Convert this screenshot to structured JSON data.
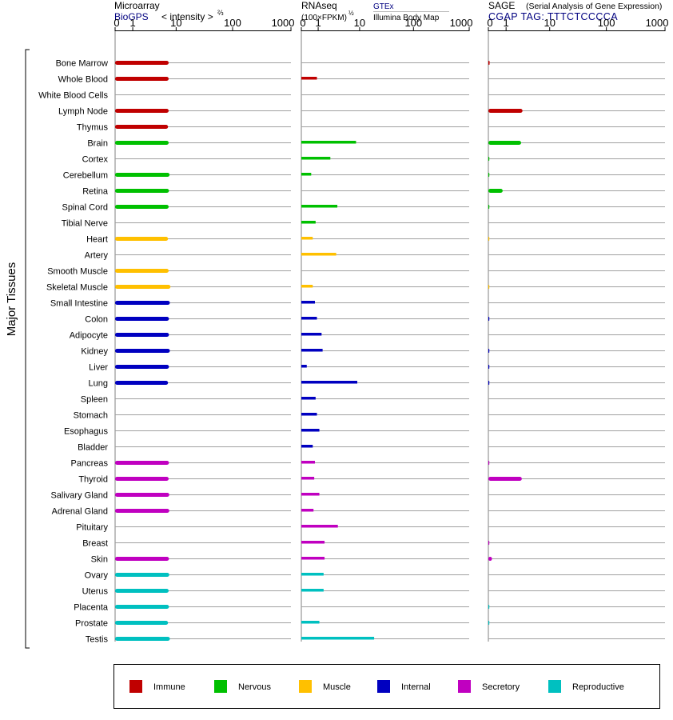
{
  "panels": {
    "microarray": {
      "title": "Microarray",
      "source": "BioGPS",
      "unit_label": "< intensity >",
      "unit_exp": "⅔"
    },
    "rnaseq": {
      "title": "RNAseq",
      "unit_label": "(100×FPKM)",
      "unit_exp": "½",
      "source_top": "GTEx",
      "source_bottom": "Illumina Body Map"
    },
    "sage": {
      "title": "SAGE",
      "subtitle": "(Serial Analysis of Gene Expression)",
      "tag": "CGAP TAG: TTTCTCCCCA"
    }
  },
  "y_axis_label": "Major Tissues",
  "colors": {
    "Immune": "#c00000",
    "Nervous": "#00c000",
    "Muscle": "#ffc000",
    "Internal": "#0000c0",
    "Secretory": "#c000c0",
    "Reproductive": "#00c0c0"
  },
  "legend": [
    {
      "label": "Immune",
      "color": "#c00000"
    },
    {
      "label": "Nervous",
      "color": "#00c000"
    },
    {
      "label": "Muscle",
      "color": "#ffc000"
    },
    {
      "label": "Internal",
      "color": "#0000c0"
    },
    {
      "label": "Secretory",
      "color": "#c000c0"
    },
    {
      "label": "Reproductive",
      "color": "#00c0c0"
    }
  ],
  "chart_data": {
    "type": "bar",
    "orientation": "horizontal",
    "x_scale": "log",
    "xlim": [
      0,
      1000
    ],
    "ticks": [
      "0",
      "1",
      "10",
      "100",
      "1000"
    ],
    "tissues": [
      {
        "name": "Bone Marrow",
        "group": "Immune",
        "microarray": 7.2,
        "rnaseq": null,
        "sage": 0.05
      },
      {
        "name": "Whole Blood",
        "group": "Immune",
        "microarray": 7.2,
        "rnaseq": 0.9,
        "sage": null
      },
      {
        "name": "White Blood Cells",
        "group": "Immune",
        "microarray": null,
        "rnaseq": null,
        "sage": null
      },
      {
        "name": "Lymph Node",
        "group": "Immune",
        "microarray": 7.2,
        "rnaseq": null,
        "sage": 2.8
      },
      {
        "name": "Thymus",
        "group": "Immune",
        "microarray": 7.0,
        "rnaseq": null,
        "sage": null
      },
      {
        "name": "Brain",
        "group": "Nervous",
        "microarray": 7.2,
        "rnaseq": 8.5,
        "sage": 2.6
      },
      {
        "name": "Cortex",
        "group": "Nervous",
        "microarray": null,
        "rnaseq": 2.3,
        "sage": 0.02
      },
      {
        "name": "Cerebellum",
        "group": "Nervous",
        "microarray": 7.5,
        "rnaseq": 0.5,
        "sage": 0.02
      },
      {
        "name": "Retina",
        "group": "Nervous",
        "microarray": 7.3,
        "rnaseq": null,
        "sage": 0.75
      },
      {
        "name": "Spinal Cord",
        "group": "Nervous",
        "microarray": 7.2,
        "rnaseq": 3.4,
        "sage": 0.02
      },
      {
        "name": "Tibial Nerve",
        "group": "Nervous",
        "microarray": null,
        "rnaseq": 0.8,
        "sage": null
      },
      {
        "name": "Heart",
        "group": "Muscle",
        "microarray": 7.0,
        "rnaseq": 0.6,
        "sage": 0.01
      },
      {
        "name": "Artery",
        "group": "Muscle",
        "microarray": null,
        "rnaseq": 3.2,
        "sage": null
      },
      {
        "name": "Smooth Muscle",
        "group": "Muscle",
        "microarray": 7.2,
        "rnaseq": null,
        "sage": null
      },
      {
        "name": "Skeletal Muscle",
        "group": "Muscle",
        "microarray": 7.8,
        "rnaseq": 0.6,
        "sage": 0.01
      },
      {
        "name": "Small Intestine",
        "group": "Internal",
        "microarray": 7.6,
        "rnaseq": 0.75,
        "sage": null
      },
      {
        "name": "Colon",
        "group": "Internal",
        "microarray": 7.3,
        "rnaseq": 0.9,
        "sage": 0.02
      },
      {
        "name": "Adipocyte",
        "group": "Internal",
        "microarray": 7.3,
        "rnaseq": 1.3,
        "sage": null
      },
      {
        "name": "Kidney",
        "group": "Internal",
        "microarray": 7.6,
        "rnaseq": 1.4,
        "sage": 0.02
      },
      {
        "name": "Liver",
        "group": "Internal",
        "microarray": 7.3,
        "rnaseq": 0.25,
        "sage": 0.02
      },
      {
        "name": "Lung",
        "group": "Internal",
        "microarray": 7.0,
        "rnaseq": 9.0,
        "sage": 0.02
      },
      {
        "name": "Spleen",
        "group": "Internal",
        "microarray": null,
        "rnaseq": 0.8,
        "sage": null
      },
      {
        "name": "Stomach",
        "group": "Internal",
        "microarray": null,
        "rnaseq": 0.9,
        "sage": null
      },
      {
        "name": "Esophagus",
        "group": "Internal",
        "microarray": null,
        "rnaseq": 1.1,
        "sage": null
      },
      {
        "name": "Bladder",
        "group": "Internal",
        "microarray": null,
        "rnaseq": 0.6,
        "sage": null
      },
      {
        "name": "Pancreas",
        "group": "Secretory",
        "microarray": 7.3,
        "rnaseq": 0.75,
        "sage": 0.02
      },
      {
        "name": "Thyroid",
        "group": "Secretory",
        "microarray": 7.2,
        "rnaseq": 0.7,
        "sage": 2.7
      },
      {
        "name": "Salivary Gland",
        "group": "Secretory",
        "microarray": 7.4,
        "rnaseq": 1.1,
        "sage": null
      },
      {
        "name": "Adrenal Gland",
        "group": "Secretory",
        "microarray": 7.4,
        "rnaseq": 0.65,
        "sage": null
      },
      {
        "name": "Pituitary",
        "group": "Secretory",
        "microarray": null,
        "rnaseq": 3.5,
        "sage": null
      },
      {
        "name": "Breast",
        "group": "Secretory",
        "microarray": null,
        "rnaseq": 1.6,
        "sage": 0.02
      },
      {
        "name": "Skin",
        "group": "Secretory",
        "microarray": 7.3,
        "rnaseq": 1.6,
        "sage": 0.15
      },
      {
        "name": "Ovary",
        "group": "Reproductive",
        "microarray": 7.4,
        "rnaseq": 1.5,
        "sage": null
      },
      {
        "name": "Uterus",
        "group": "Reproductive",
        "microarray": 7.2,
        "rnaseq": 1.5,
        "sage": null
      },
      {
        "name": "Placenta",
        "group": "Reproductive",
        "microarray": 7.3,
        "rnaseq": null,
        "sage": 0.02
      },
      {
        "name": "Prostate",
        "group": "Reproductive",
        "microarray": 7.0,
        "rnaseq": 1.1,
        "sage": 0.02
      },
      {
        "name": "Testis",
        "group": "Reproductive",
        "microarray": 7.6,
        "rnaseq": 19,
        "sage": null
      }
    ]
  }
}
